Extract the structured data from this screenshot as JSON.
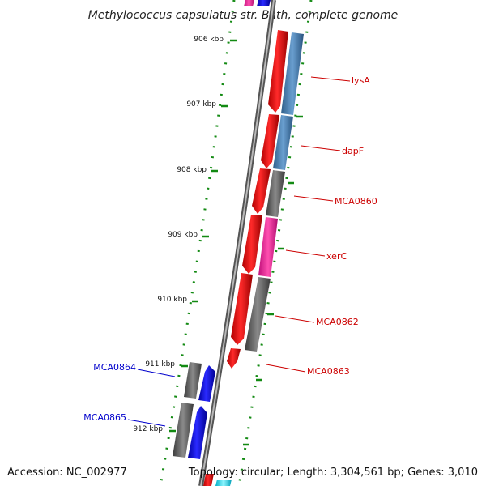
{
  "title": "Methylococcus capsulatus str. Bath, complete genome",
  "footer": {
    "accession": "Accession: NC_002977",
    "topology": "Topology: circular; Length: 3,304,561 bp; Genes: 3,010"
  },
  "kbp_ticks": [
    "906 kbp",
    "907 kbp",
    "908 kbp",
    "909 kbp",
    "910 kbp",
    "911 kbp",
    "912 kbp"
  ],
  "gene_labels": [
    {
      "name": "lysA",
      "strand": "forward",
      "color": "#cc0000"
    },
    {
      "name": "dapF",
      "strand": "forward",
      "color": "#cc0000"
    },
    {
      "name": "MCA0860",
      "strand": "forward",
      "color": "#cc0000"
    },
    {
      "name": "xerC",
      "strand": "forward",
      "color": "#cc0000"
    },
    {
      "name": "MCA0862",
      "strand": "forward",
      "color": "#cc0000"
    },
    {
      "name": "MCA0863",
      "strand": "forward",
      "color": "#cc0000"
    },
    {
      "name": "MCA0864",
      "strand": "reverse",
      "color": "#0000cc"
    },
    {
      "name": "MCA0865",
      "strand": "reverse",
      "color": "#0000cc"
    }
  ],
  "colors": {
    "forward_cds": "#ff0000",
    "reverse_cds": "#0000ff",
    "cog_blue": "#4682b4",
    "cog_gray": "#666666",
    "cog_pink": "#ff1493",
    "cog_cyan": "#00e5ff",
    "backbone": "#888888",
    "gc_dots": "#138a13"
  }
}
